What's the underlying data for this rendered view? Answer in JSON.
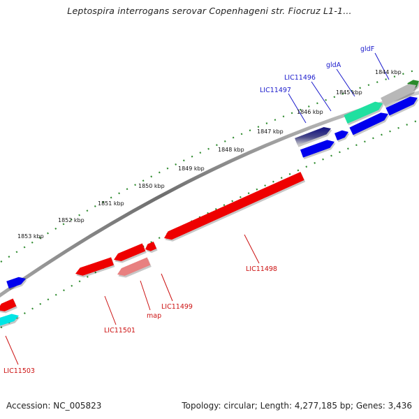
{
  "title": "Leptospira interrogans serovar Copenhageni str. Fiocruz L1-1...",
  "footer": {
    "accession": "Accession: NC_005823",
    "summary": "Topology: circular; Length: 4,277,185 bp; Genes: 3,436"
  },
  "colors": {
    "backbone": "#888888",
    "tick_track": "#2e8b2e",
    "forward_label": "#1a1acc",
    "reverse_label": "#cc1111",
    "gene_blue": "#0000ee",
    "gene_navy": "#101080",
    "gene_red": "#ee0000",
    "gene_pink": "#e88080",
    "gene_teal": "#20e0a0",
    "gene_cyan": "#00e5e5",
    "gene_grey": "#b8b8b8",
    "gene_darkgreen": "#2a8a2a"
  },
  "kbp_labels": [
    "1844 kbp",
    "1845 kbp",
    "1846 kbp",
    "1847 kbp",
    "1848 kbp",
    "1849 kbp",
    "1850 kbp",
    "1851 kbp",
    "1852 kbp",
    "1853 kbp"
  ],
  "forward_gene_labels": [
    "gldF",
    "gldA",
    "LIC11496",
    "LIC11497"
  ],
  "reverse_gene_labels": [
    "LIC11498",
    "LIC11499",
    "map",
    "LIC11501",
    "LIC11503"
  ]
}
